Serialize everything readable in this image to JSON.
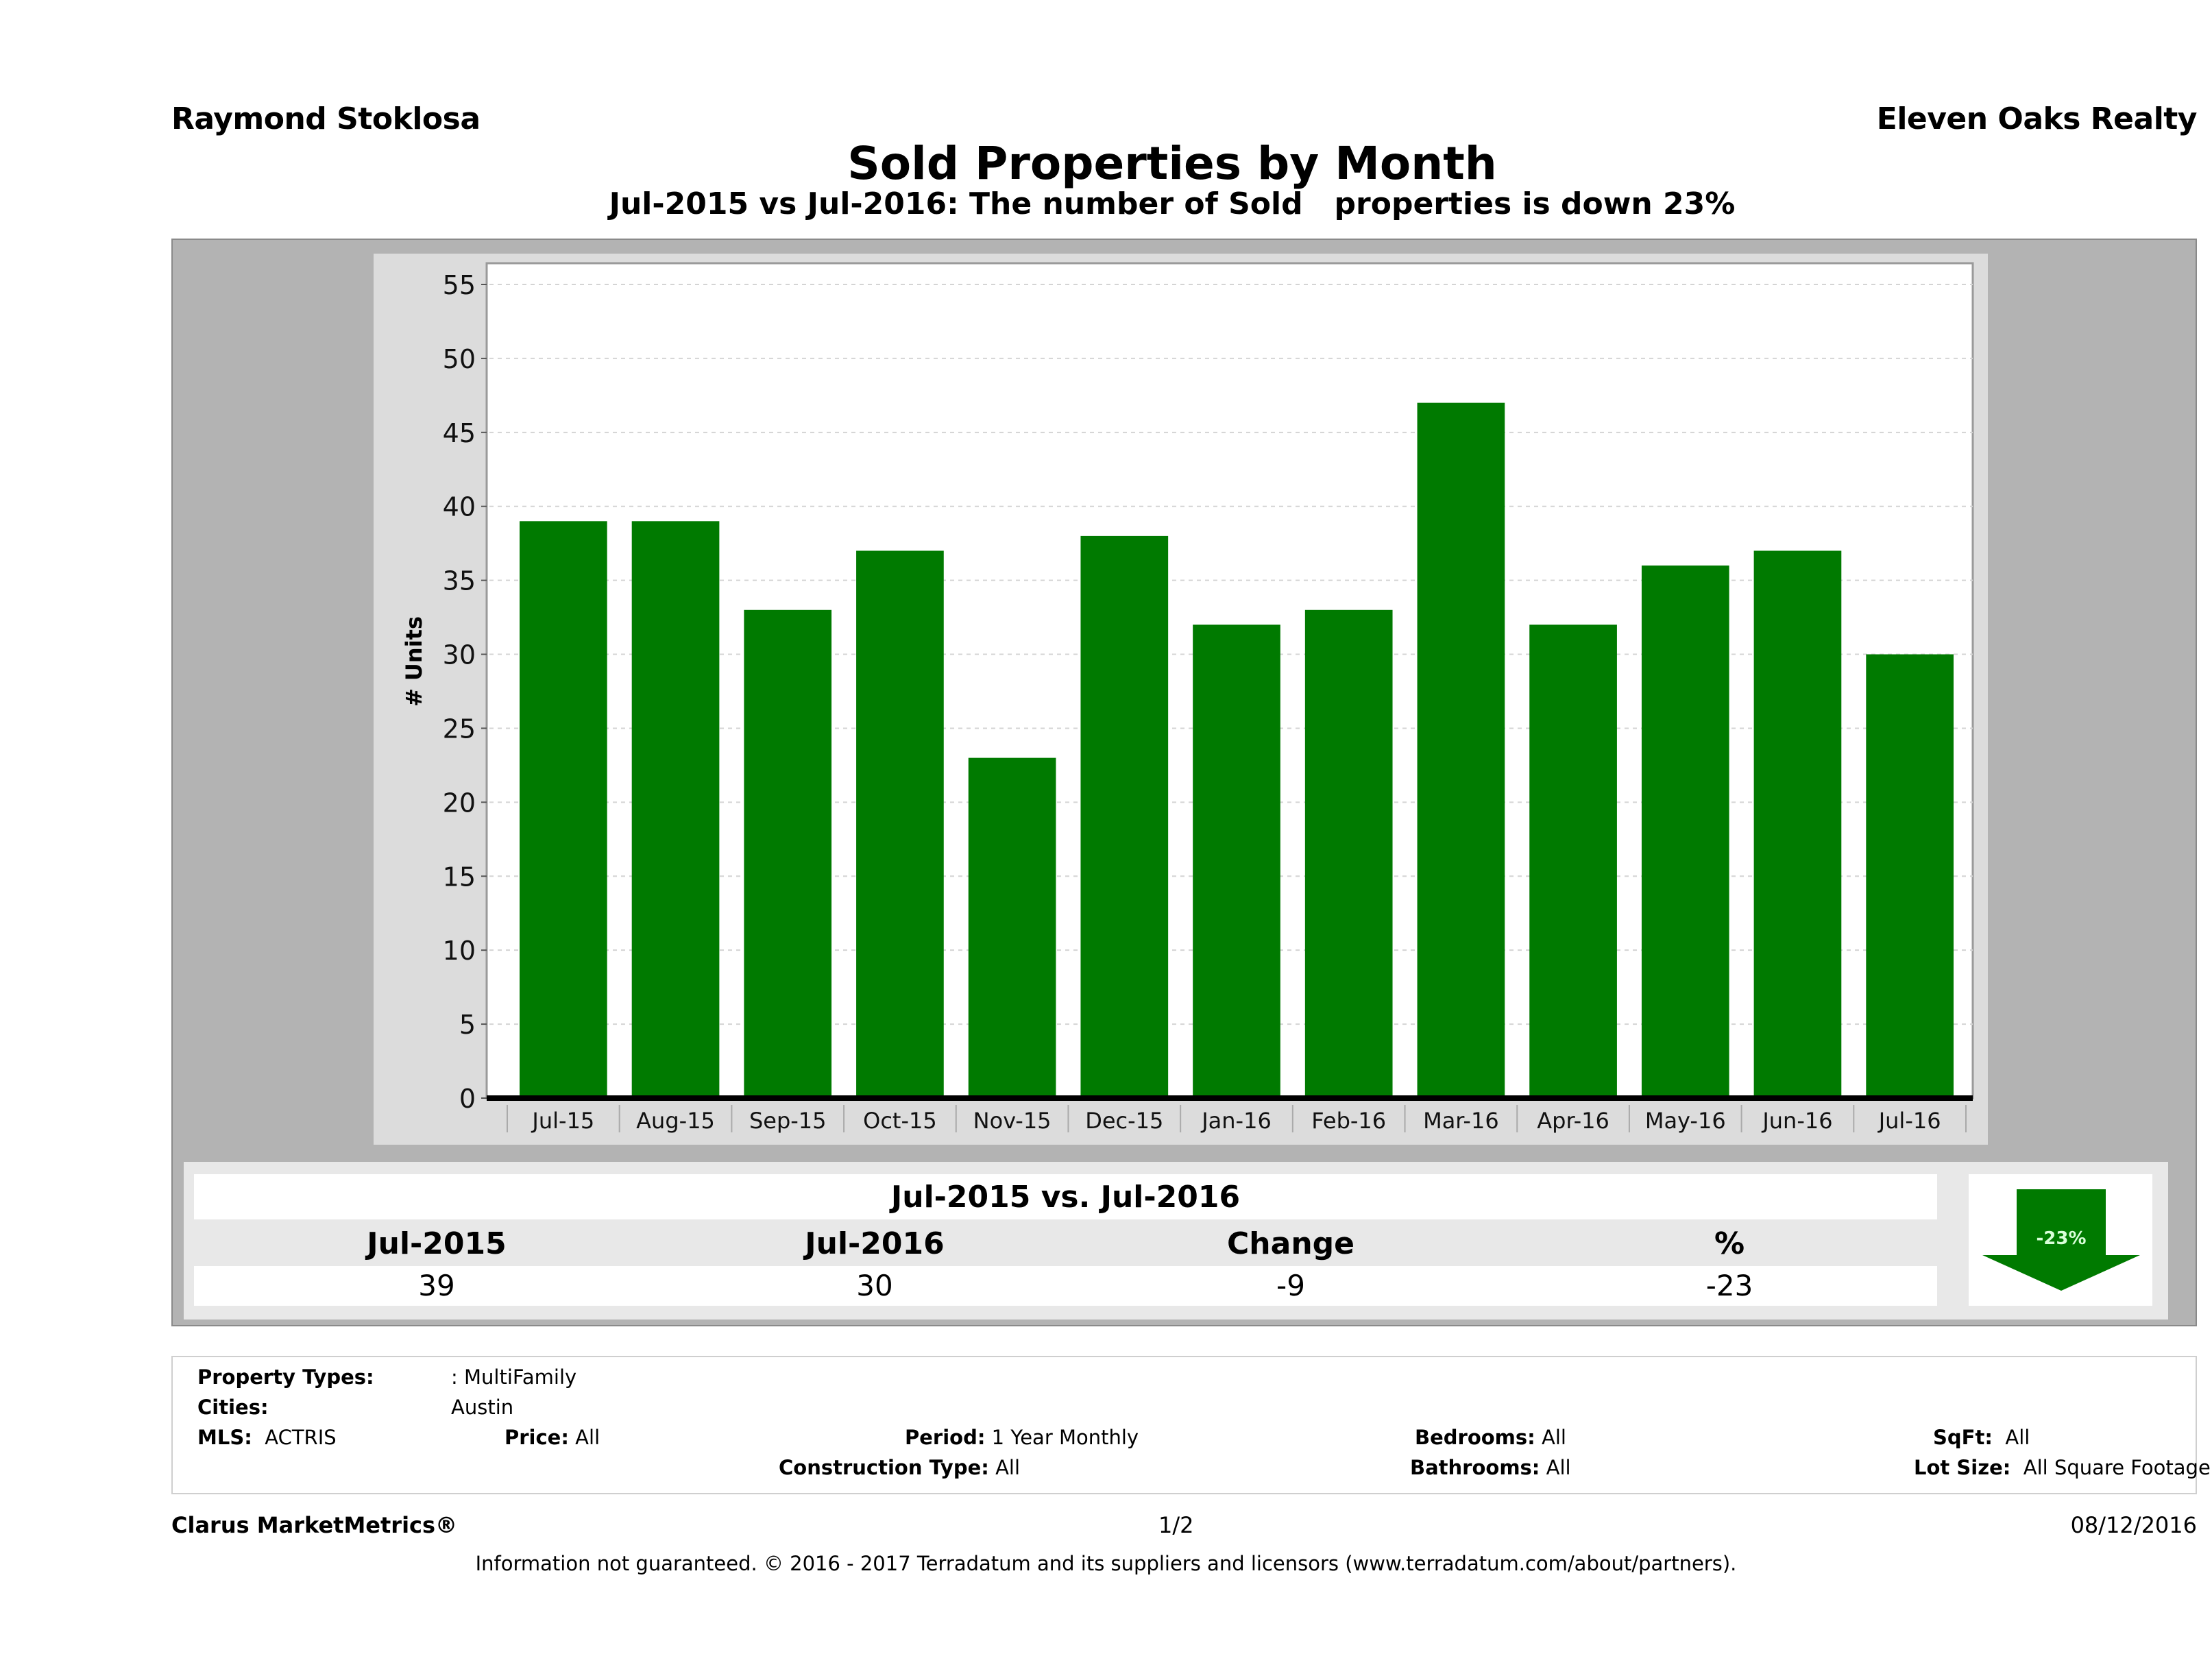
{
  "header": {
    "agent_name": "Raymond Stoklosa",
    "brokerage": "Eleven Oaks Realty",
    "title": "Sold Properties by Month",
    "subtitle": "Jul-2015 vs Jul-2016: The number of Sold   properties is down 23%"
  },
  "chart_data": {
    "type": "bar",
    "title": "Sold Properties by Month",
    "xlabel": "",
    "ylabel": "# Units",
    "ylim": [
      0,
      55
    ],
    "yticks": [
      0,
      5,
      10,
      15,
      20,
      25,
      30,
      35,
      40,
      45,
      50,
      55
    ],
    "grid": true,
    "categories": [
      "Jul-15",
      "Aug-15",
      "Sep-15",
      "Oct-15",
      "Nov-15",
      "Dec-15",
      "Jan-16",
      "Feb-16",
      "Mar-16",
      "Apr-16",
      "May-16",
      "Jun-16",
      "Jul-16"
    ],
    "values": [
      39,
      39,
      33,
      37,
      23,
      38,
      32,
      33,
      47,
      32,
      36,
      37,
      30
    ],
    "bar_color": "#007a00"
  },
  "summary": {
    "title": "Jul-2015 vs. Jul-2016",
    "headers": [
      "Jul-2015",
      "Jul-2016",
      "Change",
      "%"
    ],
    "values": [
      "39",
      "30",
      "-9",
      "-23"
    ],
    "badge": {
      "label": "-23%",
      "direction": "down",
      "icon": "down-arrow-icon",
      "color": "#007a00"
    }
  },
  "filters": {
    "property_types_label": "Property Types:",
    "property_types_value": ": MultiFamily",
    "cities_label": "Cities:",
    "cities_value": "Austin",
    "mls_label": "MLS:",
    "mls_value": "ACTRIS",
    "price_label": "Price:",
    "price_value": "All",
    "period_label": "Period:",
    "period_value": "1 Year Monthly",
    "construction_label": "Construction Type:",
    "construction_value": "All",
    "bedrooms_label": "Bedrooms:",
    "bedrooms_value": "All",
    "bathrooms_label": "Bathrooms:",
    "bathrooms_value": "All",
    "sqft_label": "SqFt:",
    "sqft_value": "All",
    "lot_label": "Lot Size:",
    "lot_value": "All Square Footage"
  },
  "footer": {
    "brand": "Clarus MarketMetrics®",
    "page": "1/2",
    "date": "08/12/2016",
    "disclaimer": "Information not guaranteed. © 2016 - 2017 Terradatum and its suppliers and licensors (www.terradatum.com/about/partners)."
  }
}
